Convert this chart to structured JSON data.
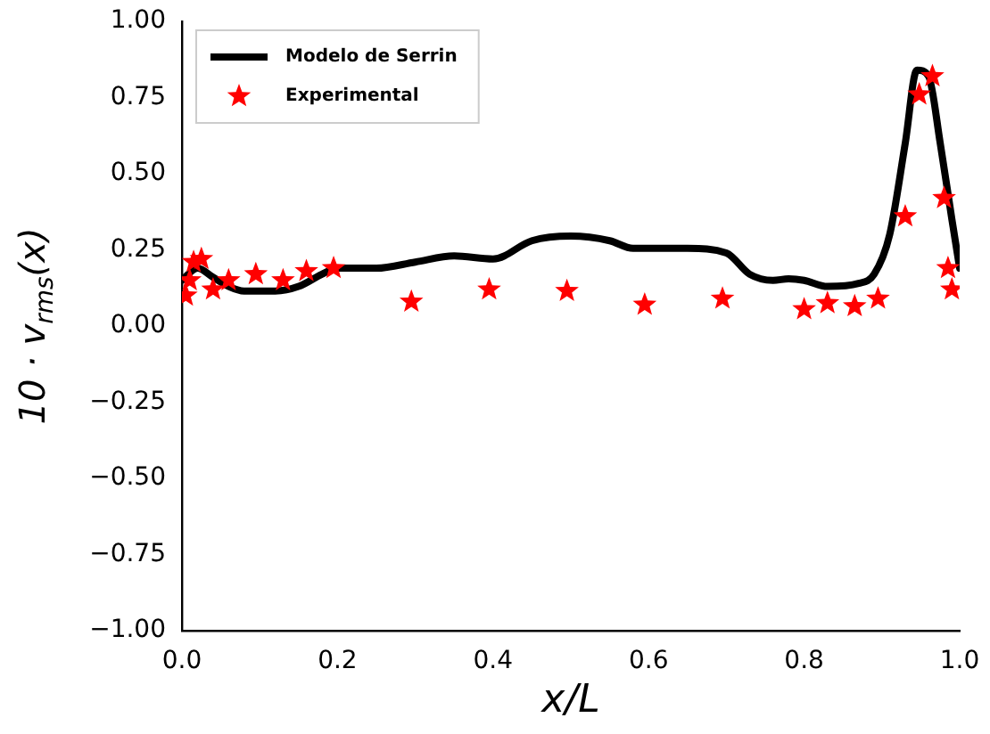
{
  "chart_data": {
    "type": "line",
    "xlabel": "x/L",
    "ylabel": "10 · v$_{rms}$(x)",
    "xlim": [
      0,
      1
    ],
    "ylim": [
      -1,
      1
    ],
    "xticks": [
      {
        "value": 0,
        "label": "0.0"
      },
      {
        "value": 0.2,
        "label": "0.2"
      },
      {
        "value": 0.4,
        "label": "0.4"
      },
      {
        "value": 0.6,
        "label": "0.6"
      },
      {
        "value": 0.8,
        "label": "0.8"
      },
      {
        "value": 1,
        "label": "1.0"
      }
    ],
    "yticks": [
      {
        "value": -1,
        "label": "−1.00"
      },
      {
        "value": -0.75,
        "label": "−0.75"
      },
      {
        "value": -0.5,
        "label": "−0.50"
      },
      {
        "value": -0.25,
        "label": "−0.25"
      },
      {
        "value": 0,
        "label": "0.00"
      },
      {
        "value": 0.25,
        "label": "0.25"
      },
      {
        "value": 0.5,
        "label": "0.50"
      },
      {
        "value": 0.75,
        "label": "0.75"
      },
      {
        "value": 1,
        "label": "1.00"
      }
    ],
    "grid": false,
    "legend": "top left",
    "series": [
      {
        "name": "Modelo de Serrin",
        "type": "line",
        "color": "#000000",
        "marker": "none",
        "line_style": "solid",
        "x": [
          0,
          0.02,
          0.04,
          0.06,
          0.08,
          0.12,
          0.15,
          0.18,
          0.2,
          0.25,
          0.3,
          0.35,
          0.4,
          0.45,
          0.5,
          0.55,
          0.58,
          0.65,
          0.7,
          0.73,
          0.76,
          0.78,
          0.8,
          0.83,
          0.87,
          0.89,
          0.91,
          0.93,
          0.945,
          0.96,
          0.975,
          0.99,
          1.0
        ],
        "values": [
          0.15,
          0.19,
          0.16,
          0.13,
          0.115,
          0.115,
          0.13,
          0.17,
          0.19,
          0.19,
          0.21,
          0.23,
          0.22,
          0.28,
          0.295,
          0.28,
          0.255,
          0.255,
          0.24,
          0.17,
          0.15,
          0.155,
          0.15,
          0.13,
          0.14,
          0.17,
          0.3,
          0.6,
          0.84,
          0.82,
          0.6,
          0.35,
          0.19
        ]
      },
      {
        "name": "Experimental",
        "type": "scatter",
        "color": "#ff0000",
        "marker": "star",
        "x": [
          0.005,
          0.01,
          0.015,
          0.025,
          0.04,
          0.06,
          0.095,
          0.13,
          0.16,
          0.195,
          0.295,
          0.395,
          0.495,
          0.595,
          0.695,
          0.8,
          0.83,
          0.865,
          0.895,
          0.93,
          0.948,
          0.965,
          0.98,
          0.985,
          0.99
        ],
        "values": [
          0.1,
          0.15,
          0.21,
          0.22,
          0.12,
          0.15,
          0.17,
          0.15,
          0.18,
          0.19,
          0.08,
          0.12,
          0.115,
          0.07,
          0.09,
          0.055,
          0.075,
          0.065,
          0.09,
          0.36,
          0.76,
          0.82,
          0.42,
          0.19,
          0.12
        ]
      }
    ]
  }
}
